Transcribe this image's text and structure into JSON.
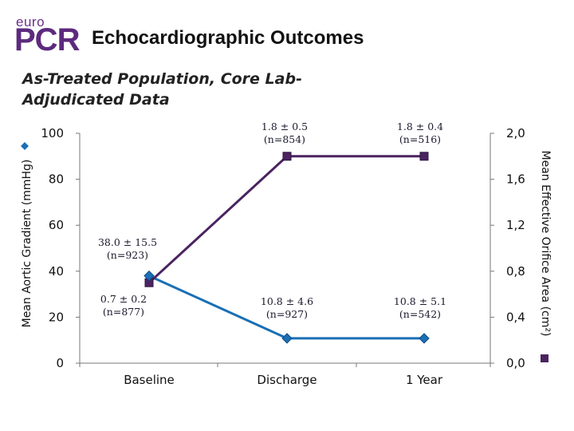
{
  "header": {
    "logo_top": "euro",
    "logo_main": "PCR",
    "title": "Echocardiographic Outcomes",
    "subtitle": "As-Treated Population, Core Lab-Adjudicated Data"
  },
  "colors": {
    "gradient_series": "#1a6fb5",
    "eoa_series": "#4a2360",
    "brand": "#5c2a7e",
    "annotation_text": "#1a1a2e"
  },
  "chart_data": {
    "type": "line",
    "title": "Echocardiographic Outcomes",
    "categories": [
      "Baseline",
      "Discharge",
      "1 Year"
    ],
    "y_left": {
      "label": "Mean Aortic Gradient (mmHg)",
      "range": [
        0,
        100
      ],
      "ticks": [
        "0",
        "20",
        "40",
        "60",
        "80",
        "100"
      ]
    },
    "y_right": {
      "label": "Mean Effective Orifice Area (cm²)",
      "range": [
        0,
        2.0
      ],
      "ticks": [
        "0,0",
        "0,4",
        "0,8",
        "1,2",
        "1,6",
        "2,0"
      ]
    },
    "series": [
      {
        "name": "Mean Aortic Gradient",
        "axis": "left",
        "values": [
          38.0,
          10.8,
          10.8
        ],
        "labels": [
          [
            "38.0 ± 15.5",
            "(n=923)"
          ],
          [
            "10.8 ± 4.6",
            "(n=927)"
          ],
          [
            "10.8 ± 5.1",
            "(n=542)"
          ]
        ]
      },
      {
        "name": "Mean Effective Orifice Area",
        "axis": "right",
        "values": [
          0.7,
          1.8,
          1.8
        ],
        "labels": [
          [
            "0.7 ± 0.2",
            "(n=877)"
          ],
          [
            "1.8 ± 0.5",
            "(n=854)"
          ],
          [
            "1.8 ± 0.4",
            "(n=516)"
          ]
        ]
      }
    ]
  }
}
